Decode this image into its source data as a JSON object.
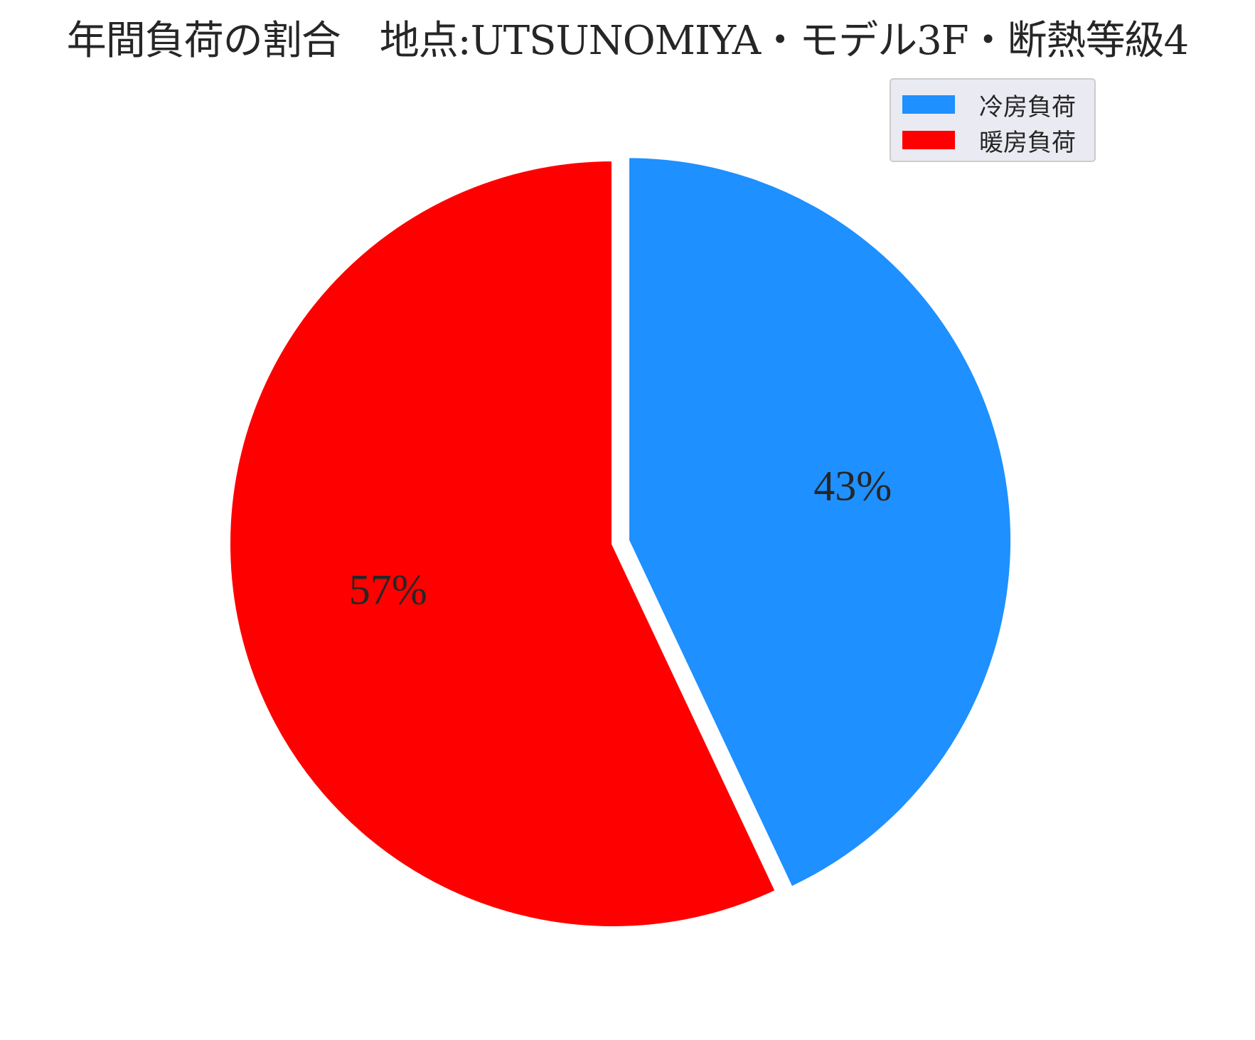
{
  "chart_data": {
    "type": "pie",
    "title": "年間負荷の割合　地点:UTSUNOMIYA・モデル3F・断熱等級4",
    "start_angle_deg": 90,
    "direction": "clockwise",
    "explode": [
      0.04,
      0
    ],
    "slices": [
      {
        "label": "冷房負荷",
        "value": 43,
        "display": "43%",
        "color": "#1E90FF"
      },
      {
        "label": "暖房負荷",
        "value": 57,
        "display": "57%",
        "color": "#FF0000"
      }
    ],
    "legend": {
      "placement": "top-right",
      "items": [
        {
          "label": "冷房負荷",
          "color": "#1E90FF"
        },
        {
          "label": "暖房負荷",
          "color": "#FF0000"
        }
      ]
    }
  }
}
